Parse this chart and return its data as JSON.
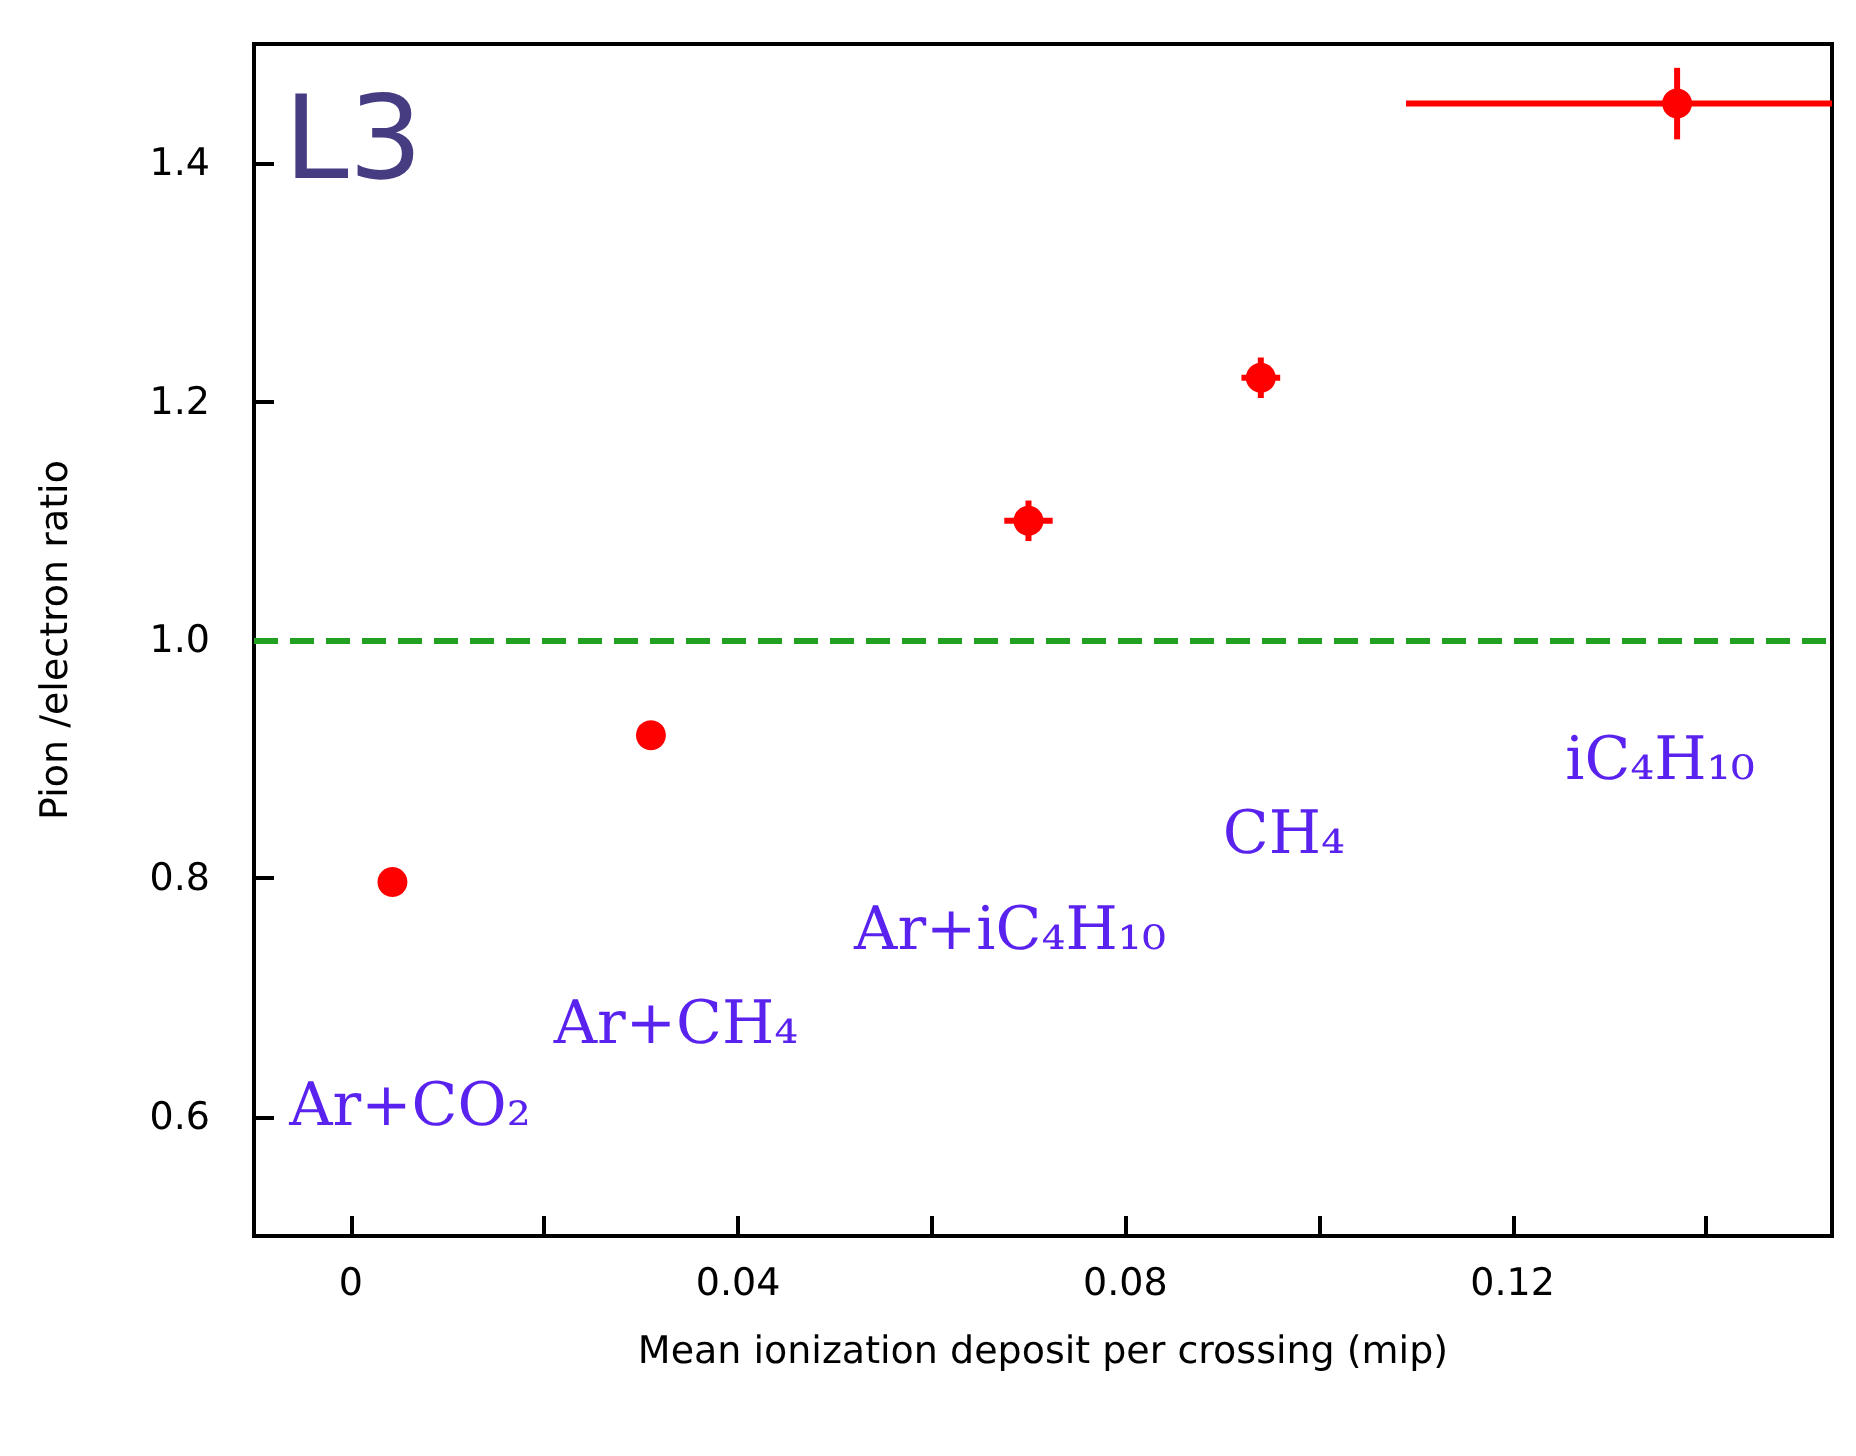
{
  "chart_data": {
    "type": "scatter",
    "xlabel": "Mean ionization deposit per crossing (mip)",
    "ylabel": "Pion /electron ratio",
    "x": [
      0.0043,
      0.031,
      0.07,
      0.094,
      0.137
    ],
    "series": [
      {
        "color": "#ff0000",
        "values": [
          0.797,
          0.92,
          1.1,
          1.22,
          1.45
        ],
        "errors": [
          null,
          null,
          0.017,
          0.017,
          0.03
        ],
        "xerrors": [
          null,
          null,
          0.0025,
          0.002,
          [
            0.109,
            0.153
          ]
        ]
      }
    ],
    "marker": "circle",
    "xlim": [
      -0.01,
      0.153
    ],
    "xticks": [
      0,
      {
        "value": 0.02,
        "label": null
      },
      0.04,
      {
        "value": 0.06,
        "label": null
      },
      0.08,
      {
        "value": 0.1,
        "label": null
      },
      0.12,
      {
        "value": 0.14,
        "label": null
      }
    ],
    "ylim": [
      0.5,
      1.5
    ],
    "yticks": [
      0.6,
      0.8,
      {
        "value": 1.0,
        "label": "1.0"
      },
      1.2,
      1.4
    ],
    "ref_lines": [
      {
        "axis": "y",
        "value": 1.0,
        "color": "#22a022",
        "line_style": "dashed"
      }
    ],
    "grid": false,
    "annotations": [
      "L3",
      "Ar+CO₂",
      "Ar+CH₄",
      "Ar+iC₄H₁₀",
      "CH₄",
      "iC₄H₁₀"
    ]
  }
}
